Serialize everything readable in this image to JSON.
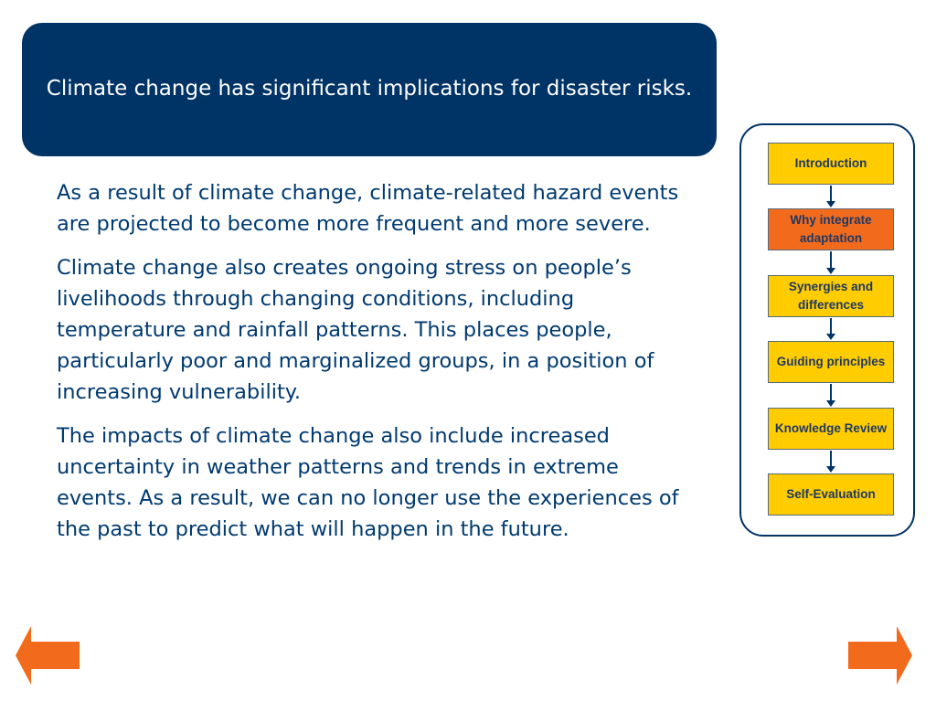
{
  "header": {
    "title": "Climate change has significant implications for disaster risks."
  },
  "body": {
    "paragraphs": [
      "As a result of climate change, climate-related hazard events are projected to become more frequent and more severe.",
      "Climate change also creates ongoing stress on people’s livelihoods through changing conditions, including temperature and rainfall patterns.  This places people, particularly poor and marginalized groups, in a position of increasing vulnerability.",
      "The impacts of climate change also include increased uncertainty in weather patterns and trends in extreme events.  As a result, we can no longer use the experiences of the past to predict what will happen in the future."
    ]
  },
  "nav": {
    "items": [
      {
        "label": "Introduction"
      },
      {
        "label": "Why integrate adaptation",
        "active": true
      },
      {
        "label": "Synergies and differences"
      },
      {
        "label": "Guiding principles"
      },
      {
        "label": "Knowledge Review"
      },
      {
        "label": "Self-Evaluation"
      }
    ]
  },
  "icons": {
    "prev": "arrow-left-icon",
    "next": "arrow-right-icon"
  },
  "colors": {
    "header_bg": "#003366",
    "body_text": "#003a70",
    "nav_box": "#ffcc00",
    "nav_active": "#f26b1d",
    "arrow": "#f26b1d"
  }
}
